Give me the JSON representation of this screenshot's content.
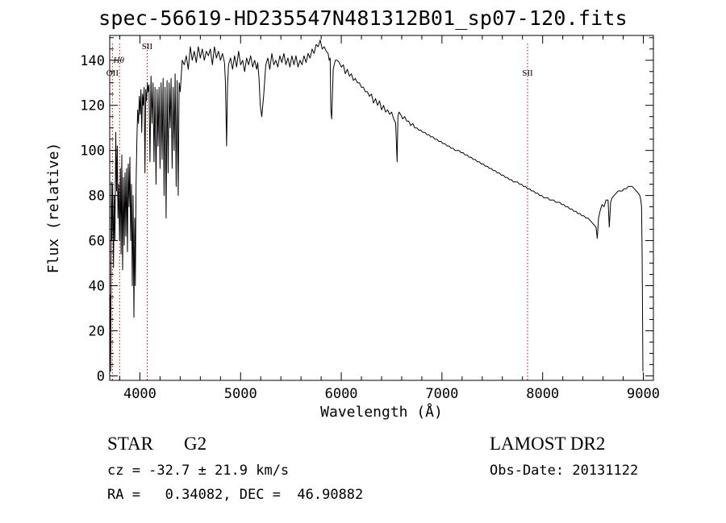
{
  "figure": {
    "title": "spec-56619-HD235547N481312B01_sp07-120.fits",
    "class_label": "STAR",
    "subclass_label": "G2",
    "survey": "LAMOST DR2",
    "cz_text": "cz = -32.7 ± 21.9 km/s",
    "obs_date_text": "Obs-Date: 20131122",
    "radec_text": "RA =   0.34082, DEC =  46.90882"
  },
  "chart_data": {
    "type": "line",
    "title": "spec-56619-HD235547N481312B01_sp07-120.fits",
    "xlabel": "Wavelength (Å)",
    "ylabel": "Flux (relative)",
    "xlim": [
      3700,
      9100
    ],
    "ylim": [
      -2,
      151
    ],
    "xticks": [
      4000,
      5000,
      6000,
      7000,
      8000,
      9000
    ],
    "yticks": [
      0,
      20,
      40,
      60,
      80,
      100,
      120,
      140
    ],
    "grid": false,
    "line_color": "#000000",
    "marker_color": "#cc0000",
    "annotations": [
      {
        "label": "OII",
        "x": 3727,
        "height": "low"
      },
      {
        "label": "Hθ",
        "x": 3798,
        "height": "mid"
      },
      {
        "label": "SII",
        "x": 4072,
        "height": "high"
      },
      {
        "label": "SII",
        "x": 7850,
        "height": "low"
      }
    ],
    "series": [
      {
        "x": [
          3705,
          3710,
          3716,
          3722,
          3730,
          3738,
          3745,
          3752,
          3760,
          3768,
          3775,
          3782,
          3790,
          3798,
          3806,
          3813,
          3820,
          3828,
          3836,
          3844,
          3852,
          3860,
          3868,
          3876,
          3884,
          3892,
          3900,
          3908,
          3916,
          3924,
          3932,
          3940,
          3948,
          3955,
          3962,
          3970,
          3978,
          3986,
          3994,
          4002,
          4010,
          4018,
          4026,
          4034,
          4042,
          4050,
          4058,
          4066,
          4074,
          4082,
          4090,
          4100,
          4110,
          4120,
          4130,
          4140,
          4150,
          4160,
          4170,
          4180,
          4190,
          4200,
          4210,
          4220,
          4230,
          4240,
          4250,
          4260,
          4270,
          4280,
          4290,
          4300,
          4310,
          4320,
          4330,
          4340,
          4350,
          4360,
          4370,
          4380,
          4390,
          4400,
          4420,
          4440,
          4460,
          4480,
          4500,
          4520,
          4540,
          4560,
          4580,
          4600,
          4620,
          4640,
          4660,
          4680,
          4700,
          4720,
          4740,
          4760,
          4780,
          4800,
          4820,
          4840,
          4850,
          4861,
          4870,
          4880,
          4900,
          4920,
          4940,
          4960,
          4980,
          5000,
          5020,
          5040,
          5060,
          5080,
          5100,
          5120,
          5140,
          5160,
          5170,
          5183,
          5195,
          5210,
          5230,
          5250,
          5270,
          5290,
          5310,
          5330,
          5350,
          5370,
          5390,
          5410,
          5430,
          5450,
          5470,
          5490,
          5510,
          5530,
          5550,
          5570,
          5590,
          5610,
          5630,
          5650,
          5670,
          5690,
          5710,
          5730,
          5750,
          5770,
          5790,
          5810,
          5830,
          5850,
          5870,
          5880,
          5890,
          5896,
          5905,
          5920,
          5940,
          5960,
          5980,
          6000,
          6020,
          6040,
          6060,
          6080,
          6100,
          6120,
          6140,
          6160,
          6180,
          6200,
          6220,
          6240,
          6260,
          6280,
          6300,
          6320,
          6340,
          6360,
          6380,
          6400,
          6420,
          6440,
          6460,
          6480,
          6500,
          6520,
          6540,
          6555,
          6563,
          6572,
          6590,
          6610,
          6630,
          6650,
          6670,
          6690,
          6710,
          6730,
          6750,
          6770,
          6790,
          6810,
          6830,
          6850,
          6870,
          6890,
          6910,
          6930,
          6950,
          6970,
          6990,
          7010,
          7030,
          7050,
          7070,
          7090,
          7110,
          7130,
          7150,
          7170,
          7190,
          7210,
          7230,
          7250,
          7270,
          7290,
          7310,
          7330,
          7350,
          7370,
          7390,
          7410,
          7430,
          7450,
          7470,
          7490,
          7510,
          7530,
          7550,
          7570,
          7590,
          7610,
          7630,
          7650,
          7670,
          7690,
          7710,
          7730,
          7750,
          7770,
          7790,
          7810,
          7830,
          7850,
          7870,
          7890,
          7910,
          7930,
          7950,
          7970,
          7990,
          8010,
          8030,
          8050,
          8070,
          8090,
          8110,
          8130,
          8150,
          8170,
          8190,
          8210,
          8230,
          8250,
          8270,
          8290,
          8310,
          8330,
          8350,
          8370,
          8390,
          8410,
          8430,
          8450,
          8470,
          8490,
          8510,
          8530,
          8542,
          8555,
          8570,
          8590,
          8610,
          8630,
          8650,
          8662,
          8675,
          8690,
          8710,
          8730,
          8750,
          8770,
          8790,
          8810,
          8830,
          8850,
          8870,
          8890,
          8910,
          8930,
          8950,
          8965,
          8975,
          8982,
          8988,
          8992,
          8996
        ],
        "y": [
          36,
          2,
          86,
          60,
          85,
          48,
          80,
          60,
          108,
          82,
          102,
          70,
          85,
          60,
          92,
          54,
          98,
          47,
          88,
          58,
          90,
          62,
          92,
          55,
          94,
          75,
          97,
          60,
          85,
          40,
          80,
          26,
          70,
          40,
          85,
          105,
          118,
          112,
          124,
          116,
          127,
          108,
          125,
          120,
          128,
          90,
          127,
          122,
          130,
          126,
          129,
          95,
          133,
          112,
          130,
          95,
          128,
          85,
          127,
          102,
          128,
          92,
          130,
          96,
          132,
          80,
          128,
          70,
          131,
          90,
          130,
          110,
          132,
          92,
          128,
          100,
          134,
          84,
          131,
          80,
          130,
          126,
          140,
          138,
          142,
          136,
          146,
          140,
          144,
          139,
          146,
          141,
          145,
          140,
          144,
          142,
          145,
          138,
          146,
          141,
          144,
          140,
          143,
          139,
          130,
          102,
          128,
          138,
          141,
          136,
          142,
          137,
          144,
          138,
          140,
          135,
          141,
          138,
          142,
          137,
          140,
          136,
          139,
          132,
          120,
          115,
          125,
          138,
          141,
          136,
          143,
          138,
          140,
          137,
          142,
          139,
          143,
          138,
          141,
          137,
          142,
          138,
          142,
          137,
          140,
          138,
          142,
          139,
          143,
          141,
          145,
          143,
          147,
          146,
          149,
          145,
          146,
          144,
          143,
          140,
          141,
          118,
          114,
          136,
          140,
          140,
          139,
          137,
          138,
          134,
          136,
          133,
          134,
          131,
          132,
          130,
          130,
          128,
          128,
          126,
          126,
          124,
          125,
          121,
          123,
          120,
          122,
          118,
          120,
          117,
          118,
          116,
          117,
          114,
          112,
          95,
          115,
          117,
          116,
          114,
          115,
          113,
          113,
          111,
          112,
          110,
          110,
          109,
          109,
          108,
          108,
          107,
          107,
          106,
          106,
          105,
          105,
          104,
          104,
          103,
          103,
          102,
          102,
          101,
          101,
          100,
          100,
          100,
          99,
          99,
          98,
          98,
          97,
          97,
          96,
          96,
          95,
          95,
          94,
          94,
          93,
          93,
          92,
          92,
          91,
          91,
          90,
          90,
          89,
          89,
          88,
          88,
          87,
          87,
          86,
          86,
          86,
          85,
          85,
          84,
          84,
          83,
          83,
          82,
          82,
          81,
          81,
          80,
          80,
          79,
          79,
          79,
          78,
          78,
          78,
          77,
          77,
          77,
          76,
          76,
          75,
          75,
          74,
          74,
          73,
          73,
          72,
          72,
          71,
          71,
          70,
          70,
          69,
          68,
          67,
          66,
          61,
          70,
          73,
          76,
          75,
          78,
          78,
          66,
          77,
          79,
          80,
          81,
          82,
          82,
          82,
          83,
          83,
          84,
          84,
          84,
          83,
          82,
          81,
          80,
          78,
          75,
          55,
          30,
          2
        ]
      }
    ]
  }
}
